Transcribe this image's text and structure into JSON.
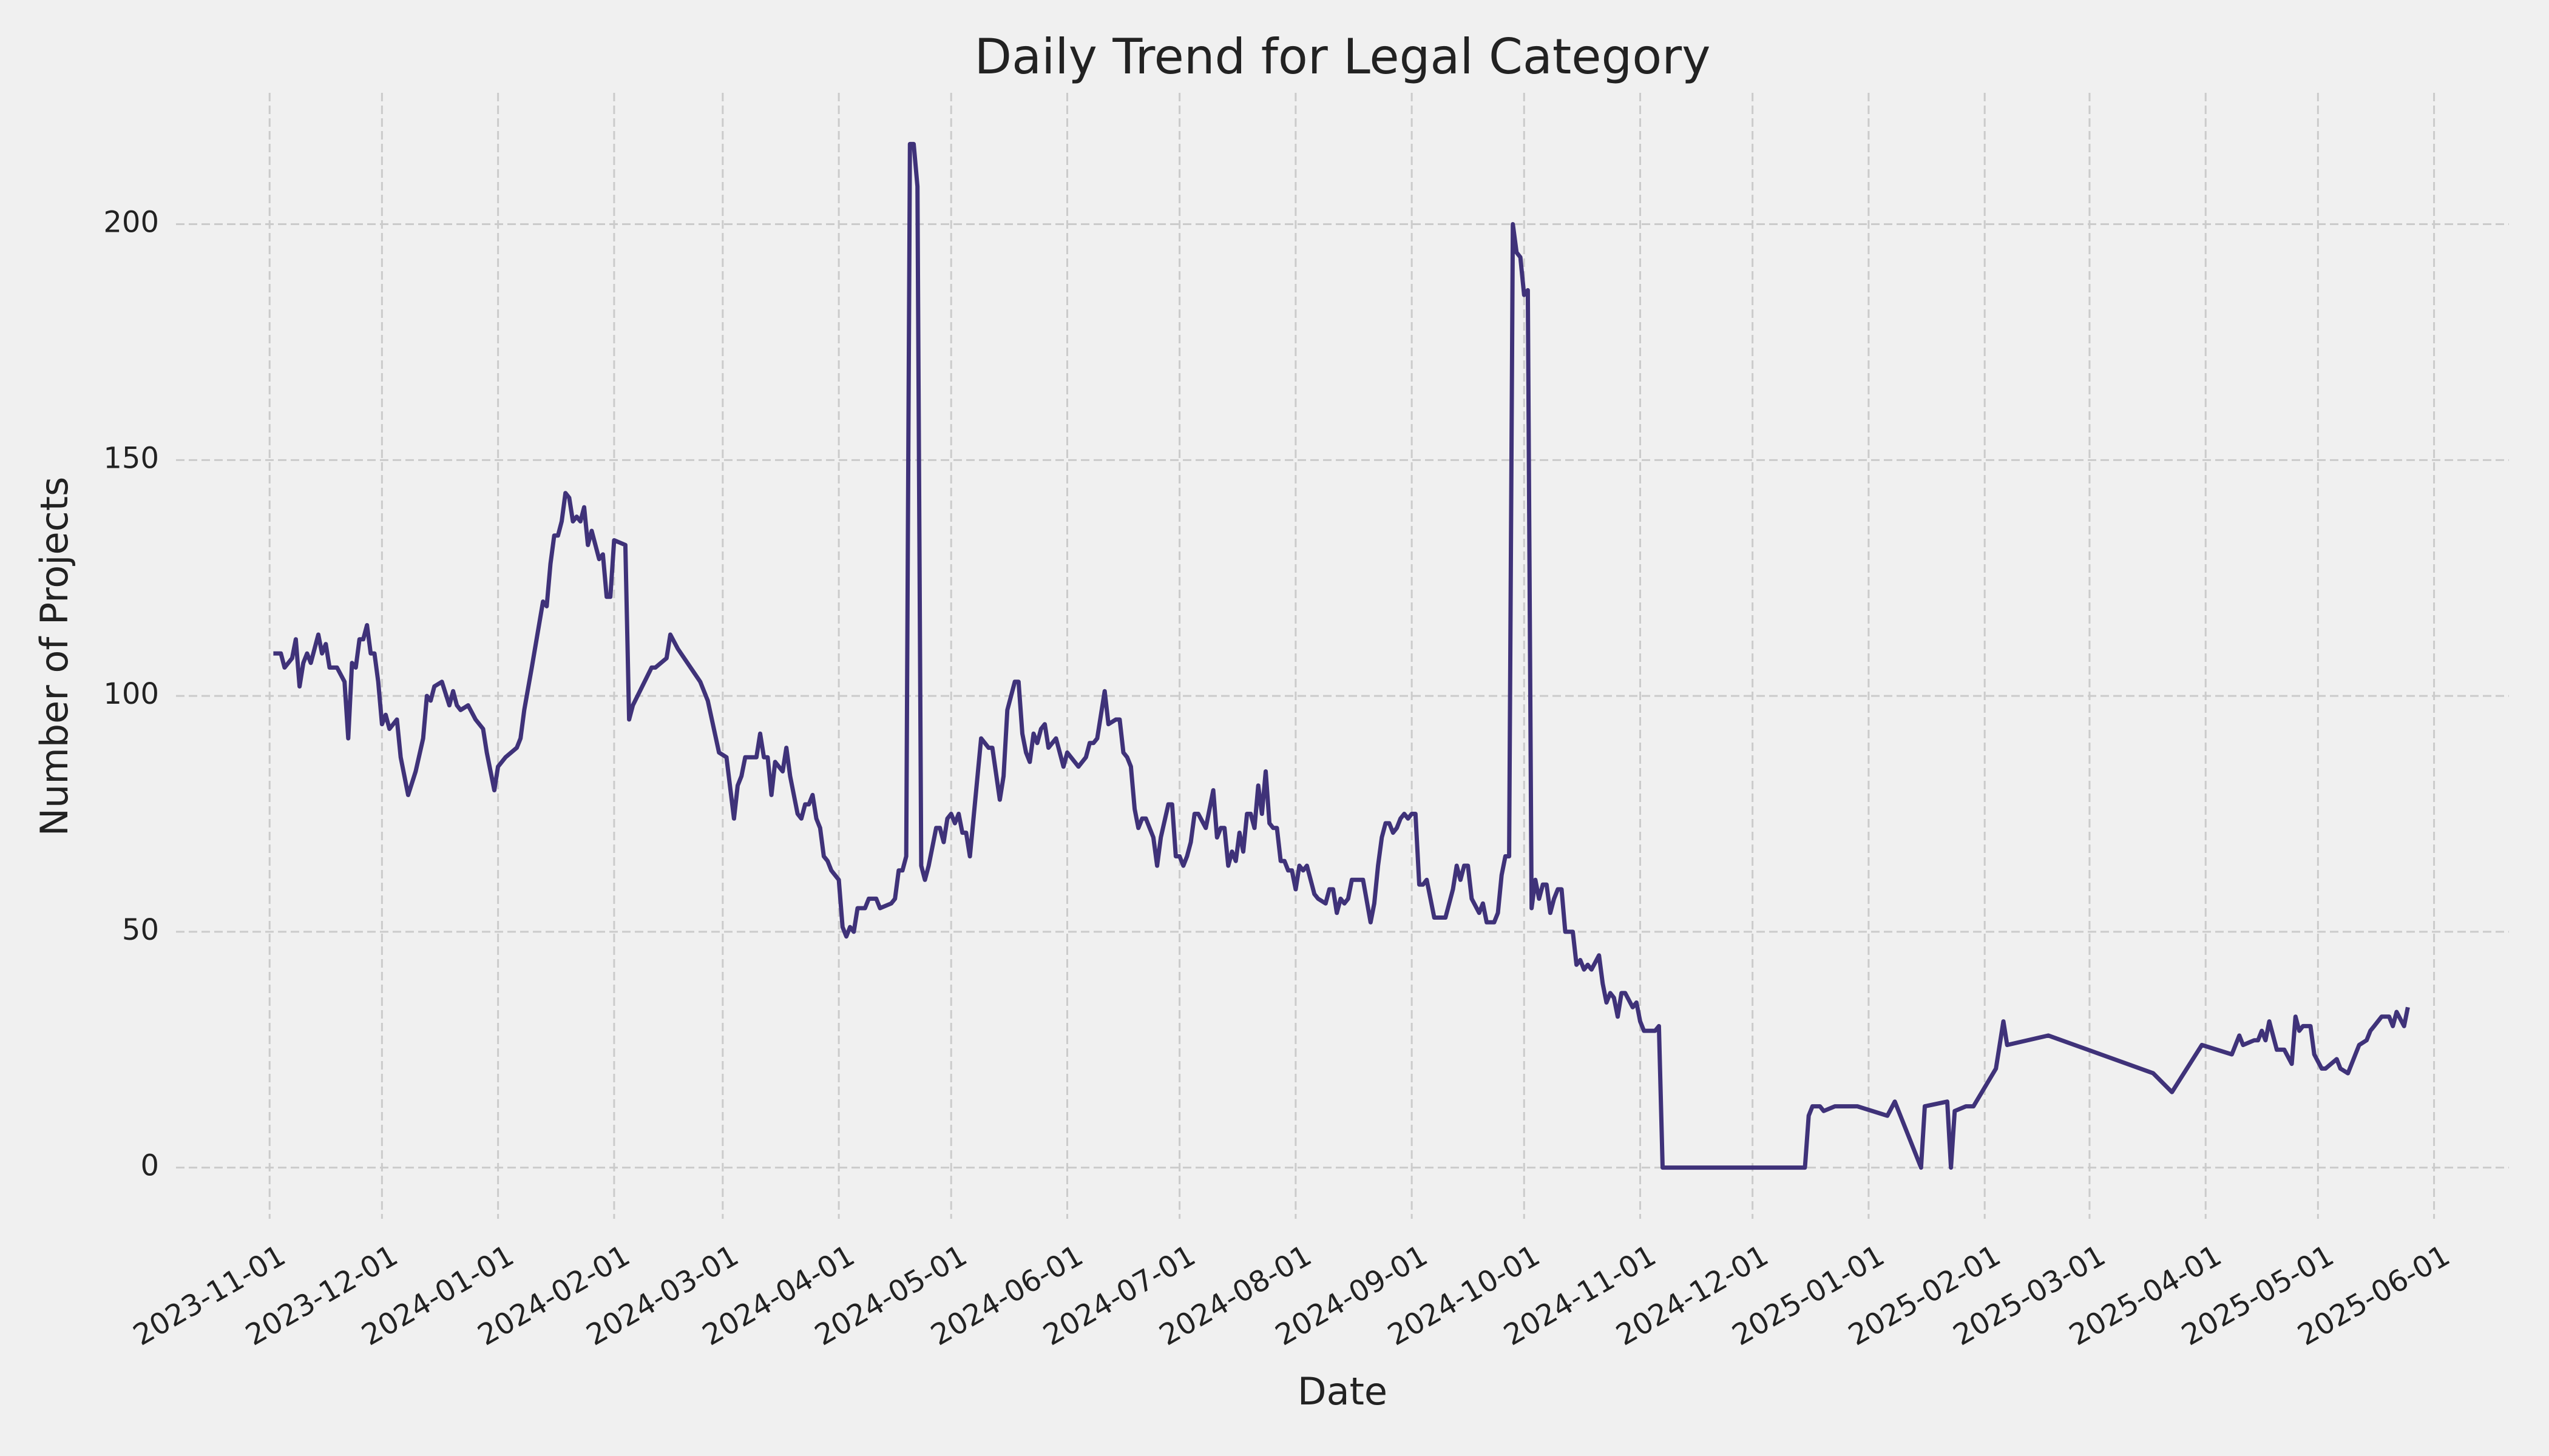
{
  "chart_data": {
    "type": "line",
    "title": "Daily Trend for Legal Category",
    "xlabel": "Date",
    "ylabel": "Number of Projects",
    "color": "#3f3279",
    "grid": true,
    "xlim": [
      "2023-10-07",
      "2025-06-21"
    ],
    "ylim": [
      -10.85,
      227.85
    ],
    "xticks": [
      "2023-11-01",
      "2023-12-01",
      "2024-01-01",
      "2024-02-01",
      "2024-03-01",
      "2024-04-01",
      "2024-05-01",
      "2024-06-01",
      "2024-07-01",
      "2024-08-01",
      "2024-09-01",
      "2024-10-01",
      "2024-11-01",
      "2024-12-01",
      "2025-01-01",
      "2025-02-01",
      "2025-03-01",
      "2025-04-01",
      "2025-05-01",
      "2025-06-01"
    ],
    "yticks": [
      0,
      50,
      100,
      150,
      200
    ],
    "x": [
      "2023-11-02",
      "2023-11-04",
      "2023-11-05",
      "2023-11-07",
      "2023-11-08",
      "2023-11-09",
      "2023-11-10",
      "2023-11-11",
      "2023-11-12",
      "2023-11-14",
      "2023-11-15",
      "2023-11-16",
      "2023-11-17",
      "2023-11-19",
      "2023-11-21",
      "2023-11-22",
      "2023-11-23",
      "2023-11-24",
      "2023-11-25",
      "2023-11-26",
      "2023-11-27",
      "2023-11-28",
      "2023-11-29",
      "2023-11-30",
      "2023-12-01",
      "2023-12-02",
      "2023-12-03",
      "2023-12-05",
      "2023-12-06",
      "2023-12-08",
      "2023-12-10",
      "2023-12-12",
      "2023-12-13",
      "2023-12-14",
      "2023-12-15",
      "2023-12-17",
      "2023-12-19",
      "2023-12-20",
      "2023-12-21",
      "2023-12-22",
      "2023-12-24",
      "2023-12-26",
      "2023-12-28",
      "2023-12-29",
      "2023-12-31",
      "2024-01-01",
      "2024-01-03",
      "2024-01-06",
      "2024-01-07",
      "2024-01-08",
      "2024-01-10",
      "2024-01-13",
      "2024-01-14",
      "2024-01-15",
      "2024-01-16",
      "2024-01-17",
      "2024-01-18",
      "2024-01-19",
      "2024-01-20",
      "2024-01-21",
      "2024-01-22",
      "2024-01-23",
      "2024-01-24",
      "2024-01-25",
      "2024-01-26",
      "2024-01-28",
      "2024-01-29",
      "2024-01-30",
      "2024-01-31",
      "2024-02-01",
      "2024-02-04",
      "2024-02-05",
      "2024-02-06",
      "2024-02-11",
      "2024-02-12",
      "2024-02-15",
      "2024-02-16",
      "2024-02-18",
      "2024-02-24",
      "2024-02-26",
      "2024-02-29",
      "2024-03-02",
      "2024-03-04",
      "2024-03-05",
      "2024-03-06",
      "2024-03-07",
      "2024-03-10",
      "2024-03-11",
      "2024-03-12",
      "2024-03-13",
      "2024-03-14",
      "2024-03-15",
      "2024-03-17",
      "2024-03-18",
      "2024-03-19",
      "2024-03-21",
      "2024-03-22",
      "2024-03-23",
      "2024-03-24",
      "2024-03-25",
      "2024-03-26",
      "2024-03-27",
      "2024-03-28",
      "2024-03-29",
      "2024-03-30",
      "2024-04-01",
      "2024-04-02",
      "2024-04-03",
      "2024-04-04",
      "2024-04-05",
      "2024-04-06",
      "2024-04-08",
      "2024-04-09",
      "2024-04-11",
      "2024-04-12",
      "2024-04-15",
      "2024-04-16",
      "2024-04-17",
      "2024-04-18",
      "2024-04-19",
      "2024-04-20",
      "2024-04-21",
      "2024-04-22",
      "2024-04-23",
      "2024-04-24",
      "2024-04-25",
      "2024-04-27",
      "2024-04-28",
      "2024-04-29",
      "2024-04-30",
      "2024-05-01",
      "2024-05-02",
      "2024-05-03",
      "2024-05-04",
      "2024-05-05",
      "2024-05-06",
      "2024-05-09",
      "2024-05-10",
      "2024-05-11",
      "2024-05-12",
      "2024-05-14",
      "2024-05-15",
      "2024-05-16",
      "2024-05-18",
      "2024-05-19",
      "2024-05-20",
      "2024-05-21",
      "2024-05-22",
      "2024-05-23",
      "2024-05-24",
      "2024-05-25",
      "2024-05-26",
      "2024-05-27",
      "2024-05-29",
      "2024-05-31",
      "2024-06-01",
      "2024-06-04",
      "2024-06-06",
      "2024-06-07",
      "2024-06-08",
      "2024-06-09",
      "2024-06-11",
      "2024-06-12",
      "2024-06-14",
      "2024-06-15",
      "2024-06-16",
      "2024-06-17",
      "2024-06-18",
      "2024-06-19",
      "2024-06-20",
      "2024-06-21",
      "2024-06-22",
      "2024-06-24",
      "2024-06-25",
      "2024-06-26",
      "2024-06-28",
      "2024-06-29",
      "2024-06-30",
      "2024-07-01",
      "2024-07-02",
      "2024-07-03",
      "2024-07-04",
      "2024-07-05",
      "2024-07-06",
      "2024-07-08",
      "2024-07-10",
      "2024-07-11",
      "2024-07-12",
      "2024-07-13",
      "2024-07-14",
      "2024-07-15",
      "2024-07-16",
      "2024-07-17",
      "2024-07-18",
      "2024-07-19",
      "2024-07-20",
      "2024-07-21",
      "2024-07-22",
      "2024-07-23",
      "2024-07-24",
      "2024-07-25",
      "2024-07-26",
      "2024-07-27",
      "2024-07-28",
      "2024-07-29",
      "2024-07-30",
      "2024-07-31",
      "2024-08-01",
      "2024-08-02",
      "2024-08-03",
      "2024-08-04",
      "2024-08-06",
      "2024-08-07",
      "2024-08-09",
      "2024-08-10",
      "2024-08-11",
      "2024-08-12",
      "2024-08-13",
      "2024-08-14",
      "2024-08-15",
      "2024-08-16",
      "2024-08-19",
      "2024-08-21",
      "2024-08-22",
      "2024-08-23",
      "2024-08-24",
      "2024-08-25",
      "2024-08-26",
      "2024-08-27",
      "2024-08-28",
      "2024-08-29",
      "2024-08-30",
      "2024-08-31",
      "2024-09-01",
      "2024-09-02",
      "2024-09-03",
      "2024-09-04",
      "2024-09-05",
      "2024-09-07",
      "2024-09-10",
      "2024-09-12",
      "2024-09-13",
      "2024-09-14",
      "2024-09-15",
      "2024-09-16",
      "2024-09-17",
      "2024-09-19",
      "2024-09-20",
      "2024-09-21",
      "2024-09-23",
      "2024-09-24",
      "2024-09-25",
      "2024-09-26",
      "2024-09-27",
      "2024-09-28",
      "2024-09-29",
      "2024-09-30",
      "2024-10-01",
      "2024-10-02",
      "2024-10-03",
      "2024-10-04",
      "2024-10-05",
      "2024-10-06",
      "2024-10-07",
      "2024-10-08",
      "2024-10-09",
      "2024-10-10",
      "2024-10-11",
      "2024-10-12",
      "2024-10-14",
      "2024-10-15",
      "2024-10-16",
      "2024-10-17",
      "2024-10-18",
      "2024-10-19",
      "2024-10-21",
      "2024-10-22",
      "2024-10-23",
      "2024-10-24",
      "2024-10-25",
      "2024-10-26",
      "2024-10-27",
      "2024-10-28",
      "2024-10-30",
      "2024-10-31",
      "2024-11-01",
      "2024-11-02",
      "2024-11-05",
      "2024-11-06",
      "2024-11-07",
      "2024-12-15",
      "2024-12-16",
      "2024-12-17",
      "2024-12-19",
      "2024-12-20",
      "2024-12-23",
      "2024-12-29",
      "2025-01-06",
      "2025-01-08",
      "2025-01-15",
      "2025-01-16",
      "2025-01-22",
      "2025-01-23",
      "2025-01-24",
      "2025-01-27",
      "2025-01-29",
      "2025-02-04",
      "2025-02-06",
      "2025-02-07",
      "2025-02-18",
      "2025-03-18",
      "2025-03-23",
      "2025-03-31",
      "2025-04-08",
      "2025-04-10",
      "2025-04-11",
      "2025-04-14",
      "2025-04-15",
      "2025-04-16",
      "2025-04-17",
      "2025-04-18",
      "2025-04-20",
      "2025-04-22",
      "2025-04-24",
      "2025-04-25",
      "2025-04-26",
      "2025-04-27",
      "2025-04-29",
      "2025-04-30",
      "2025-05-02",
      "2025-05-03",
      "2025-05-06",
      "2025-05-07",
      "2025-05-09",
      "2025-05-11",
      "2025-05-12",
      "2025-05-14",
      "2025-05-15",
      "2025-05-16",
      "2025-05-18",
      "2025-05-20",
      "2025-05-21",
      "2025-05-22",
      "2025-05-24",
      "2025-05-25"
    ],
    "values": [
      109,
      109,
      106,
      108,
      112,
      102,
      107,
      109,
      107,
      113,
      109,
      111,
      106,
      106,
      103,
      91,
      107,
      106,
      112,
      112,
      115,
      109,
      109,
      103,
      94,
      96,
      93,
      95,
      87,
      79,
      84,
      91,
      100,
      99,
      102,
      103,
      98,
      101,
      98,
      97,
      98,
      95,
      93,
      88,
      80,
      85,
      87,
      89,
      91,
      97,
      106,
      120,
      119,
      128,
      134,
      134,
      137,
      143,
      142,
      137,
      138,
      137,
      140,
      132,
      135,
      129,
      130,
      121,
      121,
      133,
      132,
      95,
      98,
      106,
      106,
      108,
      113,
      110,
      103,
      99,
      88,
      87,
      74,
      81,
      83,
      87,
      87,
      92,
      87,
      87,
      79,
      86,
      84,
      89,
      83,
      75,
      74,
      77,
      77,
      79,
      74,
      72,
      66,
      65,
      63,
      61,
      51,
      49,
      51,
      50,
      55,
      55,
      57,
      57,
      55,
      56,
      57,
      63,
      63,
      66,
      217,
      217,
      208,
      64,
      61,
      64,
      72,
      72,
      69,
      74,
      75,
      73,
      75,
      71,
      71,
      66,
      91,
      90,
      89,
      89,
      78,
      83,
      97,
      103,
      103,
      92,
      88,
      86,
      92,
      90,
      93,
      94,
      89,
      91,
      85,
      88,
      85,
      87,
      90,
      90,
      91,
      101,
      94,
      95,
      95,
      88,
      87,
      85,
      76,
      72,
      74,
      74,
      70,
      64,
      70,
      77,
      77,
      66,
      66,
      64,
      66,
      69,
      75,
      75,
      72,
      80,
      70,
      72,
      72,
      64,
      67,
      65,
      71,
      67,
      75,
      75,
      72,
      81,
      75,
      84,
      73,
      72,
      72,
      65,
      65,
      63,
      63,
      59,
      64,
      63,
      64,
      58,
      57,
      56,
      59,
      59,
      54,
      57,
      56,
      57,
      61,
      61,
      52,
      56,
      64,
      70,
      73,
      73,
      71,
      72,
      74,
      75,
      74,
      75,
      75,
      60,
      60,
      61,
      53,
      53,
      59,
      64,
      61,
      64,
      64,
      57,
      54,
      56,
      52,
      52,
      54,
      62,
      66,
      66,
      200,
      194,
      193,
      185,
      186,
      55,
      61,
      57,
      60,
      60,
      54,
      57,
      59,
      59,
      50,
      50,
      43,
      44,
      42,
      43,
      42,
      45,
      39,
      35,
      37,
      36,
      32,
      37,
      37,
      34,
      35,
      31,
      29,
      29,
      30,
      0,
      0,
      11,
      13,
      13,
      12,
      13,
      13,
      11,
      14,
      0,
      13,
      14,
      0,
      12,
      13,
      13,
      21,
      31,
      26,
      28,
      20,
      16,
      26,
      24,
      28,
      26,
      27,
      27,
      29,
      27,
      31,
      25,
      25,
      22,
      32,
      29,
      30,
      30,
      24,
      21,
      21,
      23,
      21,
      20,
      24,
      26,
      27,
      29,
      30,
      32,
      32,
      30,
      33,
      30,
      34
    ]
  }
}
